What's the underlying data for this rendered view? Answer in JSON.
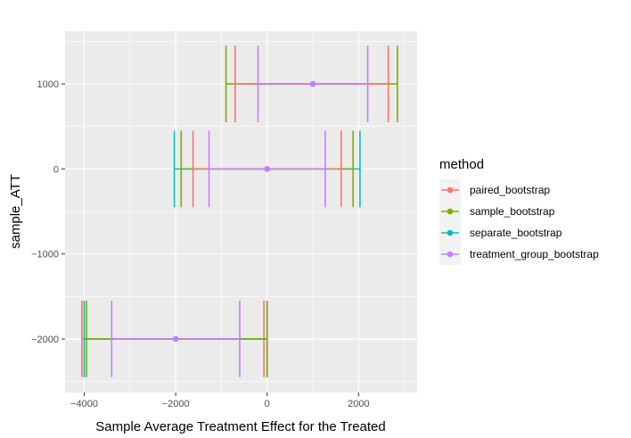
{
  "chart_data": {
    "type": "errorbar",
    "xlabel": "Sample Average Treatment Effect for the Treated",
    "ylabel": "sample_ATT",
    "xlim": [
      -4420,
      3280
    ],
    "ylim": [
      -2630,
      1620
    ],
    "x_ticks": [
      -4000,
      -2000,
      0,
      2000
    ],
    "x_tick_labels": [
      "−4000",
      "−2000",
      "0",
      "2000"
    ],
    "y_ticks": [
      -2000,
      -1000,
      0,
      1000
    ],
    "y_tick_labels": [
      "−2000",
      "−1000",
      "0",
      "1000"
    ],
    "grid": true,
    "legend": {
      "title": "method",
      "position": "right",
      "entries": [
        "paired_bootstrap",
        "sample_bootstrap",
        "separate_bootstrap",
        "treatment_group_bootstrap"
      ]
    },
    "colors": {
      "paired_bootstrap": "#F8766D",
      "sample_bootstrap": "#7CAE00",
      "separate_bootstrap": "#00BFC4",
      "treatment_group_bootstrap": "#C77CFF"
    },
    "groups": [
      {
        "y": 1000,
        "point": 1000,
        "intervals": [
          {
            "method": "sample_bootstrap",
            "low": -900,
            "high": 2850
          },
          {
            "method": "paired_bootstrap",
            "low": -700,
            "high": 2650
          },
          {
            "method": "treatment_group_bootstrap",
            "low": -200,
            "high": 2200
          }
        ]
      },
      {
        "y": 0,
        "point": 0,
        "intervals": [
          {
            "method": "separate_bootstrap",
            "low": -2030,
            "high": 2030
          },
          {
            "method": "sample_bootstrap",
            "low": -1880,
            "high": 1880
          },
          {
            "method": "paired_bootstrap",
            "low": -1620,
            "high": 1620
          },
          {
            "method": "treatment_group_bootstrap",
            "low": -1270,
            "high": 1270
          }
        ]
      },
      {
        "y": -2000,
        "point": -2000,
        "intervals": [
          {
            "method": "paired_bootstrap",
            "low": -4050,
            "high": -70
          },
          {
            "method": "separate_bootstrap",
            "low": -4000,
            "high": 0
          },
          {
            "method": "sample_bootstrap",
            "low": -3950,
            "high": 0
          },
          {
            "method": "treatment_group_bootstrap",
            "low": -3400,
            "high": -600
          }
        ]
      }
    ]
  }
}
